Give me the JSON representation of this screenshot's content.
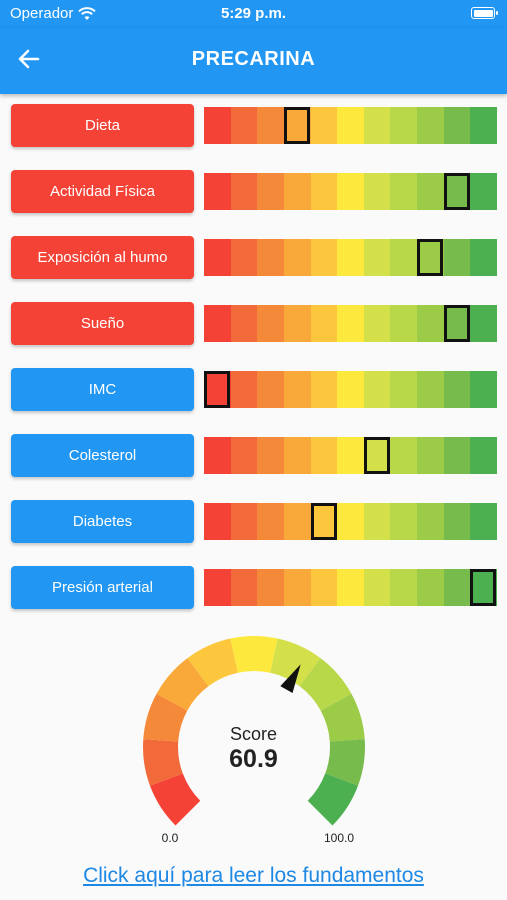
{
  "status_bar": {
    "carrier": "Operador",
    "time": "5:29 p.m."
  },
  "app_bar": {
    "title": "PRECARINA"
  },
  "scale_colors": [
    "#f44336",
    "#f26a3a",
    "#f5893a",
    "#f9a93a",
    "#fcc73c",
    "#fde93e",
    "#d4e04a",
    "#b8d84a",
    "#9ccb48",
    "#77bb4c",
    "#4caf50"
  ],
  "metrics": [
    {
      "label": "Dieta",
      "style": "red",
      "level_segment": 3
    },
    {
      "label": "Actividad Física",
      "style": "red",
      "level_segment": 9
    },
    {
      "label": "Exposición al humo",
      "style": "red",
      "level_segment": 8
    },
    {
      "label": "Sueño",
      "style": "red",
      "level_segment": 9
    },
    {
      "label": "IMC",
      "style": "blue",
      "level_segment": 0
    },
    {
      "label": "Colesterol",
      "style": "blue",
      "level_segment": 6
    },
    {
      "label": "Diabetes",
      "style": "blue",
      "level_segment": 4
    },
    {
      "label": "Presión arterial",
      "style": "blue",
      "level_segment": 10
    }
  ],
  "gauge": {
    "label": "Score",
    "value": "60.9",
    "value_number": 60.9,
    "min": "0.0",
    "max": "100.0",
    "colors": [
      "#f44336",
      "#f26a3a",
      "#f5893a",
      "#f9a93a",
      "#fcc73c",
      "#fde93e",
      "#d4e04a",
      "#b8d84a",
      "#9ccb48",
      "#77bb4c",
      "#4caf50"
    ]
  },
  "link_text": "Click aquí para leer los fundamentos"
}
